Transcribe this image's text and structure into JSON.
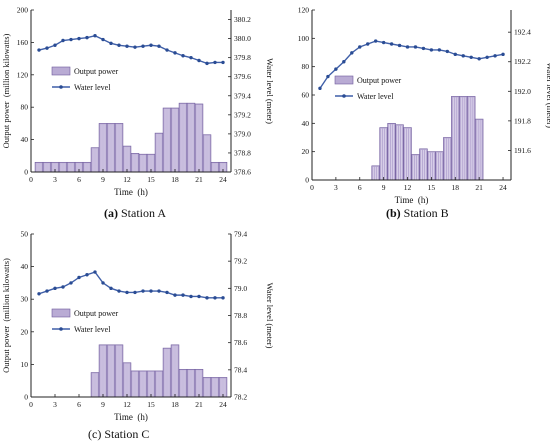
{
  "chart_data": [
    {
      "type": "bar",
      "panel_id": "a",
      "caption_letter": "(a)",
      "caption_text": " Station A",
      "xlabel": "Time  (h)",
      "ylabel_left": "Output power  (million kilowatts)",
      "ylabel_right": "Water level (meter)",
      "xlim": [
        0,
        25
      ],
      "xticks": [
        "0",
        "3",
        "6",
        "9",
        "12",
        "15",
        "18",
        "21",
        "24"
      ],
      "ylim_left": [
        0,
        200
      ],
      "yticks_left": [
        "0",
        "40",
        "80",
        "120",
        "160",
        "200"
      ],
      "ylim_right": [
        378.6,
        380.3
      ],
      "yticks_right": [
        "378.6",
        "378.8",
        "379.0",
        "379.2",
        "379.4",
        "379.6",
        "379.8",
        "380.0",
        "380.2"
      ],
      "legend_position": "middle-left",
      "series": [
        {
          "name": "Output power",
          "kind": "bar",
          "x": [
            1,
            2,
            3,
            4,
            5,
            6,
            7,
            8,
            9,
            10,
            11,
            12,
            13,
            14,
            15,
            16,
            17,
            18,
            19,
            20,
            21,
            22,
            23,
            24
          ],
          "values": [
            12,
            12,
            12,
            12,
            12,
            12,
            12,
            30,
            60,
            60,
            60,
            32,
            23,
            22,
            22,
            48,
            79,
            79,
            85,
            85,
            84,
            46,
            12,
            12
          ]
        },
        {
          "name": "Water level",
          "kind": "line",
          "x": [
            1,
            2,
            3,
            4,
            5,
            6,
            7,
            8,
            9,
            10,
            11,
            12,
            13,
            14,
            15,
            16,
            17,
            18,
            19,
            20,
            21,
            22,
            23,
            24
          ],
          "values": [
            379.88,
            379.9,
            379.93,
            379.98,
            379.99,
            380.0,
            380.01,
            380.03,
            379.99,
            379.95,
            379.93,
            379.92,
            379.91,
            379.92,
            379.93,
            379.92,
            379.88,
            379.85,
            379.82,
            379.8,
            379.77,
            379.74,
            379.75,
            379.75
          ]
        }
      ]
    },
    {
      "type": "bar",
      "panel_id": "b",
      "caption_letter": "(b)",
      "caption_text": " Station B",
      "xlabel": "Time  (h)",
      "ylabel_left": "",
      "ylabel_right": "Water level (meter)",
      "xlim": [
        0,
        25
      ],
      "xticks": [
        "0",
        "3",
        "6",
        "9",
        "12",
        "15",
        "18",
        "21",
        "24"
      ],
      "ylim_left": [
        0,
        120
      ],
      "yticks_left": [
        "0",
        "20",
        "40",
        "60",
        "80",
        "100",
        "120"
      ],
      "ylim_right": [
        191.4,
        192.55
      ],
      "yticks_right": [
        "191.6",
        "191.8",
        "192.0",
        "192.2",
        "192.4"
      ],
      "legend_position": "middle-center",
      "series": [
        {
          "name": "Output power",
          "kind": "bar",
          "x": [
            1,
            2,
            3,
            4,
            5,
            6,
            7,
            8,
            9,
            10,
            11,
            12,
            13,
            14,
            15,
            16,
            17,
            18,
            19,
            20,
            21,
            22,
            23,
            24
          ],
          "values": [
            0,
            0,
            0,
            0,
            0,
            0,
            0,
            10,
            37,
            40,
            39,
            37,
            18,
            22,
            20,
            20,
            30,
            59,
            59,
            59,
            43,
            0,
            0,
            0
          ]
        },
        {
          "name": "Water level",
          "kind": "line",
          "x": [
            1,
            2,
            3,
            4,
            5,
            6,
            7,
            8,
            9,
            10,
            11,
            12,
            13,
            14,
            15,
            16,
            17,
            18,
            19,
            20,
            21,
            22,
            23,
            24
          ],
          "values": [
            192.02,
            192.1,
            192.15,
            192.2,
            192.26,
            192.3,
            192.32,
            192.34,
            192.33,
            192.32,
            192.31,
            192.3,
            192.3,
            192.29,
            192.28,
            192.28,
            192.27,
            192.25,
            192.24,
            192.23,
            192.22,
            192.23,
            192.24,
            192.25
          ]
        }
      ]
    },
    {
      "type": "bar",
      "panel_id": "c",
      "caption_letter": "(c)",
      "caption_text": " Station C",
      "xlabel": "Time  (h)",
      "ylabel_left": "Output power  (million kilowatts)",
      "ylabel_right": "Water level (meter)",
      "xlim": [
        0,
        25
      ],
      "xticks": [
        "0",
        "3",
        "6",
        "9",
        "12",
        "15",
        "18",
        "21",
        "24"
      ],
      "ylim_left": [
        0,
        50
      ],
      "yticks_left": [
        "0",
        "10",
        "20",
        "30",
        "40",
        "50"
      ],
      "ylim_right": [
        78.2,
        79.4
      ],
      "yticks_right": [
        "78.2",
        "78.4",
        "78.6",
        "78.8",
        "79.0",
        "79.2",
        "79.4"
      ],
      "legend_position": "middle-left",
      "series": [
        {
          "name": "Output power",
          "kind": "bar",
          "x": [
            1,
            2,
            3,
            4,
            5,
            6,
            7,
            8,
            9,
            10,
            11,
            12,
            13,
            14,
            15,
            16,
            17,
            18,
            19,
            20,
            21,
            22,
            23,
            24
          ],
          "values": [
            0,
            0,
            0,
            0,
            0,
            0,
            0,
            7.5,
            16,
            16,
            16,
            10.5,
            8,
            8,
            8,
            8,
            15,
            16,
            8.5,
            8.5,
            8.5,
            6,
            6,
            6
          ]
        },
        {
          "name": "Water level",
          "kind": "line",
          "x": [
            1,
            2,
            3,
            4,
            5,
            6,
            7,
            8,
            9,
            10,
            11,
            12,
            13,
            14,
            15,
            16,
            17,
            18,
            19,
            20,
            21,
            22,
            23,
            24
          ],
          "values": [
            78.96,
            78.98,
            79.0,
            79.01,
            79.04,
            79.08,
            79.1,
            79.12,
            79.04,
            79.0,
            78.98,
            78.97,
            78.97,
            78.98,
            78.98,
            78.98,
            78.97,
            78.95,
            78.95,
            78.94,
            78.94,
            78.93,
            78.93,
            78.93
          ]
        }
      ]
    }
  ],
  "style": {
    "bar_fill": "#b9abd4",
    "bar_stroke": "#6e5a9c",
    "line_color": "#3f5fa8",
    "marker_color": "#2a4c94",
    "axis_color": "#222222"
  }
}
